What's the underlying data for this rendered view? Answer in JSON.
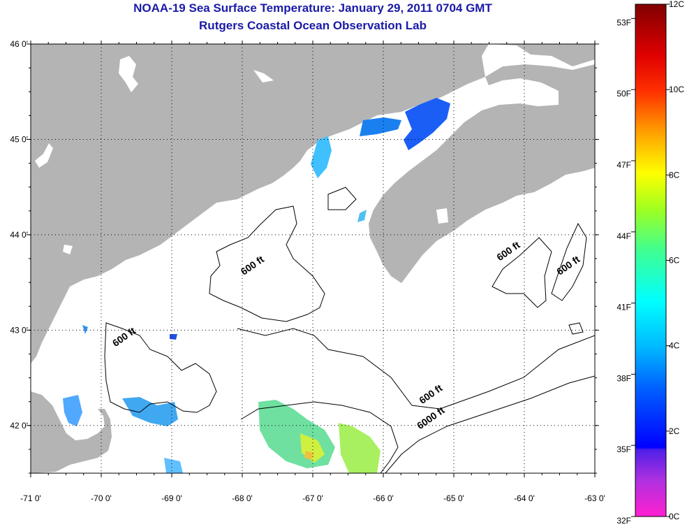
{
  "title": "NOAA-19 Sea Surface Temperature:  January 29, 2011 0704 GMT",
  "subtitle": "Rutgers Coastal Ocean Observation Lab",
  "map": {
    "lon_range": [
      -71,
      -63
    ],
    "lat_range": [
      41.5,
      46
    ],
    "lon_ticks": [
      {
        "value": -71,
        "label": "-71 0'"
      },
      {
        "value": -70,
        "label": "-70 0'"
      },
      {
        "value": -69,
        "label": "-69 0'"
      },
      {
        "value": -68,
        "label": "-68 0'"
      },
      {
        "value": -67,
        "label": "-67 0'"
      },
      {
        "value": -66,
        "label": "-66 0'"
      },
      {
        "value": -65,
        "label": "-65 0'"
      },
      {
        "value": -64,
        "label": "-64 0'"
      },
      {
        "value": -63,
        "label": "-63 0'"
      }
    ],
    "lat_ticks": [
      {
        "value": 46,
        "label": "46 0'"
      },
      {
        "value": 45,
        "label": "45 0'"
      },
      {
        "value": 44,
        "label": "44 0'"
      },
      {
        "value": 43,
        "label": "43 0'"
      },
      {
        "value": 42,
        "label": "42 0'"
      }
    ],
    "gridlines": "dotted",
    "land_color": "#b4b4b4",
    "contour_labels": [
      {
        "text": "600 ft",
        "lon": -67.83,
        "lat": 43.65
      },
      {
        "text": "600 ft",
        "lon": -69.65,
        "lat": 42.9
      },
      {
        "text": "600 ft",
        "lon": -64.2,
        "lat": 43.8
      },
      {
        "text": "600 ft",
        "lon": -63.35,
        "lat": 43.65
      },
      {
        "text": "600 ft",
        "lon": -65.3,
        "lat": 42.3
      },
      {
        "text": "6000 ft",
        "lon": -65.3,
        "lat": 42.05
      }
    ]
  },
  "colorbar": {
    "fahrenheit_ticks": [
      {
        "value": 53,
        "label": "53F"
      },
      {
        "value": 50,
        "label": "50F"
      },
      {
        "value": 47,
        "label": "47F"
      },
      {
        "value": 44,
        "label": "44F"
      },
      {
        "value": 41,
        "label": "41F"
      },
      {
        "value": 38,
        "label": "38F"
      },
      {
        "value": 35,
        "label": "35F"
      },
      {
        "value": 32,
        "label": "32F"
      }
    ],
    "celsius_ticks": [
      {
        "value": 12,
        "label": "12C"
      },
      {
        "value": 10,
        "label": "10C"
      },
      {
        "value": 8,
        "label": "8C"
      },
      {
        "value": 6,
        "label": "6C"
      },
      {
        "value": 4,
        "label": "4C"
      },
      {
        "value": 2,
        "label": "2C"
      },
      {
        "value": 0,
        "label": "0C"
      }
    ],
    "range_c": [
      0,
      12
    ],
    "colors": [
      "#ff20d0",
      "#a040e0",
      "#0000ff",
      "#00a0ff",
      "#00ffff",
      "#40ff80",
      "#ffff00",
      "#ff8000",
      "#ff0000",
      "#800000"
    ]
  }
}
